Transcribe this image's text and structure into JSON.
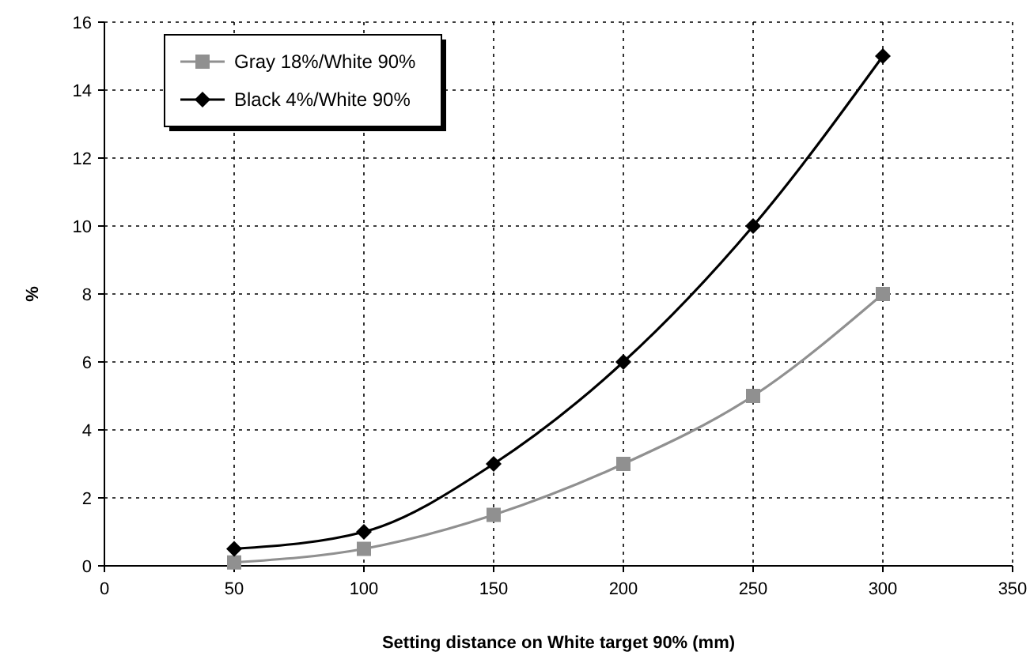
{
  "chart_data": {
    "type": "line",
    "xlabel": "Setting distance on White target 90% (mm)",
    "ylabel": "%",
    "x": [
      50,
      100,
      150,
      200,
      250,
      300
    ],
    "series": [
      {
        "name": "Gray 18%/White 90%",
        "color": "#909090",
        "marker": "square",
        "values": [
          0.1,
          0.5,
          1.5,
          3,
          5,
          8
        ]
      },
      {
        "name": "Black 4%/White 90%",
        "color": "#000000",
        "marker": "diamond",
        "values": [
          0.5,
          1,
          3,
          6,
          10,
          15
        ]
      }
    ],
    "xlim": [
      0,
      350
    ],
    "xticks": [
      0,
      50,
      100,
      150,
      200,
      250,
      300,
      350
    ],
    "ylim": [
      0,
      16
    ],
    "yticks": [
      0,
      2,
      4,
      6,
      8,
      10,
      12,
      14,
      16
    ],
    "grid": true,
    "legend": "top left",
    "line_style": "solid"
  }
}
